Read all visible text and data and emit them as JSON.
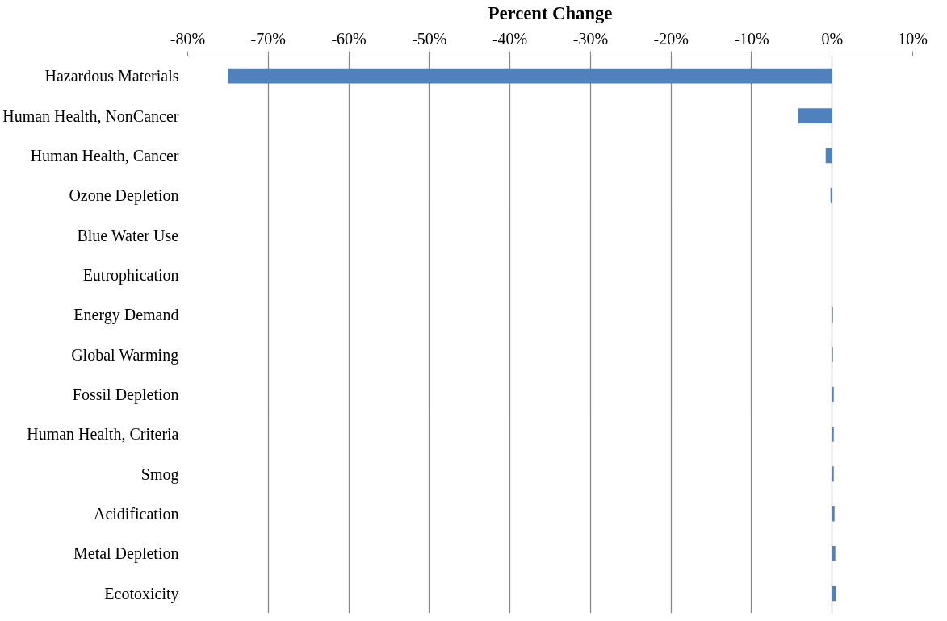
{
  "chart_data": {
    "type": "bar",
    "orientation": "horizontal",
    "xlabel": "Percent Change",
    "categories": [
      "Hazardous Materials",
      "Human Health, NonCancer",
      "Human Health, Cancer",
      "Ozone Depletion",
      "Blue Water Use",
      "Eutrophication",
      "Energy Demand",
      "Global Warming",
      "Fossil Depletion",
      "Human Health, Criteria",
      "Smog",
      "Acidification",
      "Metal Depletion",
      "Ecotoxicity"
    ],
    "values": [
      -75,
      -4.2,
      -0.8,
      -0.2,
      0,
      0,
      0.1,
      0.1,
      0.2,
      0.2,
      0.2,
      0.3,
      0.4,
      0.5
    ],
    "color": "#4f81bd",
    "xlim": [
      -80,
      10
    ],
    "xticks": [
      {
        "value": -80,
        "label": "-80%"
      },
      {
        "value": -70,
        "label": "-70%"
      },
      {
        "value": -60,
        "label": "-60%"
      },
      {
        "value": -50,
        "label": "-50%"
      },
      {
        "value": -40,
        "label": "-40%"
      },
      {
        "value": -30,
        "label": "-30%"
      },
      {
        "value": -20,
        "label": "-20%"
      },
      {
        "value": -10,
        "label": "-10%"
      },
      {
        "value": 0,
        "label": "0%"
      },
      {
        "value": 10,
        "label": "10%"
      }
    ],
    "grid": "x"
  }
}
